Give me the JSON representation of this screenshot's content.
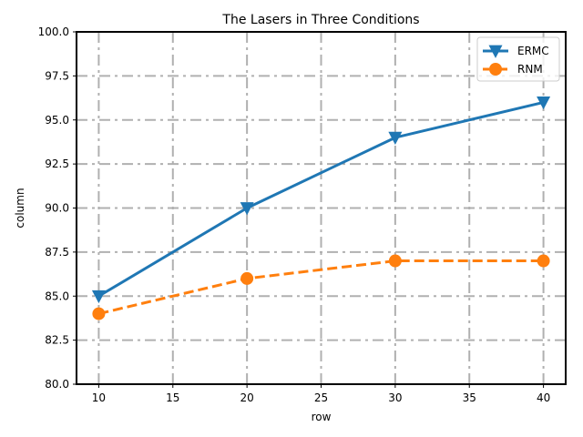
{
  "chart_data": {
    "type": "line",
    "title": "The Lasers in Three Conditions",
    "xlabel": "row",
    "ylabel": "column",
    "x": [
      10,
      20,
      30,
      40
    ],
    "xlim": [
      8.5,
      41.5
    ],
    "ylim": [
      80.0,
      100.0
    ],
    "xticks": [
      10,
      15,
      20,
      25,
      30,
      35,
      40
    ],
    "yticks": [
      "80.0",
      "82.5",
      "85.0",
      "87.5",
      "90.0",
      "92.5",
      "95.0",
      "97.5",
      "100.0"
    ],
    "grid": true,
    "legend_position": "top-right",
    "series": [
      {
        "name": "ERMC",
        "values": [
          85,
          90,
          94,
          96
        ],
        "color": "#1f77b4",
        "marker": "triangle-down",
        "linestyle": "solid"
      },
      {
        "name": "RNM",
        "values": [
          84,
          86,
          87,
          87
        ],
        "color": "#ff7f0e",
        "marker": "circle",
        "linestyle": "dashed"
      }
    ]
  }
}
